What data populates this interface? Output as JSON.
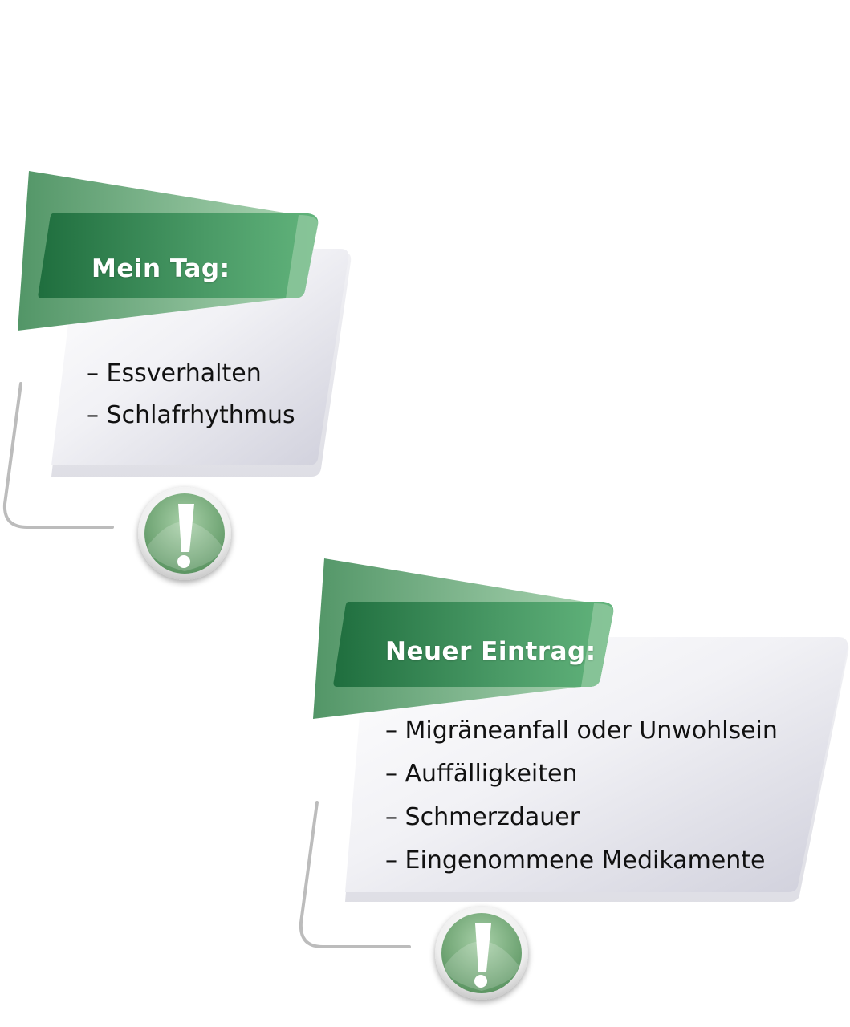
{
  "cards": [
    {
      "title": "Mein Tag:",
      "items": [
        "– Essverhalten",
        "– Schlafrhythmus"
      ],
      "icon": "exclamation-icon"
    },
    {
      "title": "Neuer Eintrag:",
      "items": [
        "– Migräneanfall oder Unwohlsein",
        "– Auffälligkeiten",
        "– Schmerzdauer",
        "– Eingenommene Medikamente"
      ],
      "icon": "exclamation-icon"
    }
  ],
  "colors": {
    "green_dark": "#2a7a48",
    "green_mid": "#4f9a68",
    "green_light": "#7fbf8f",
    "panel_grey": "#d9d9e3",
    "connector_grey": "#b8b8b8"
  }
}
